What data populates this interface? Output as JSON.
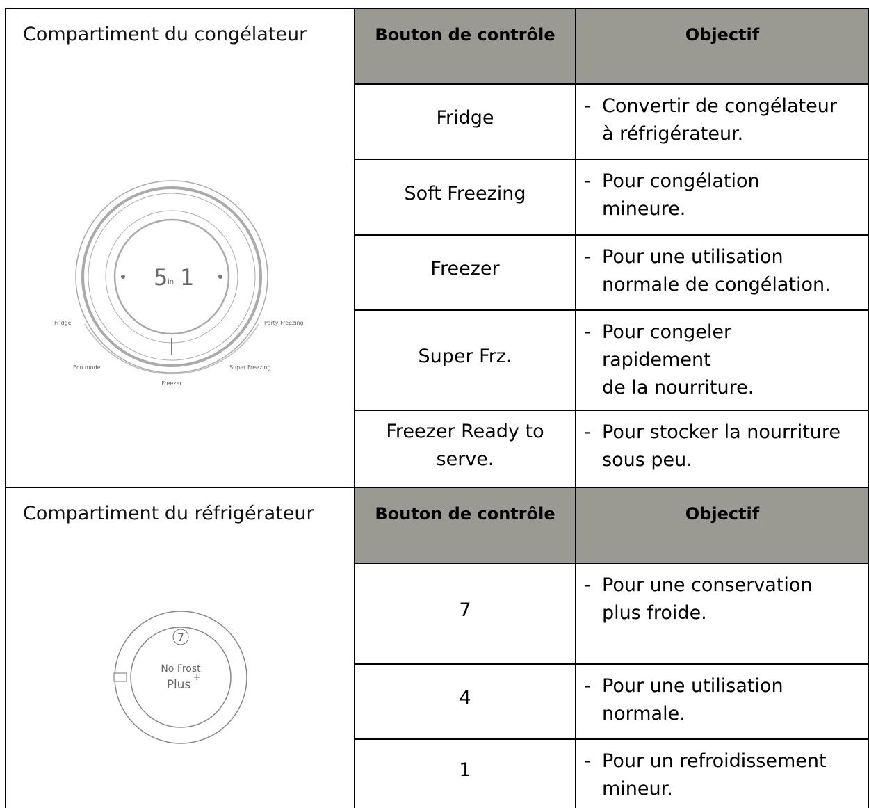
{
  "bullet": "-",
  "sections": [
    {
      "title": "Compartiment du congélateur",
      "headers": [
        "Bouton de contrôle",
        "Objectif"
      ],
      "rows": [
        {
          "control": "Fridge",
          "purpose": [
            "Convertir de congélateur",
            "à réfrigérateur."
          ]
        },
        {
          "control": "Soft Freezing",
          "purpose": [
            "Pour congélation",
            "mineure."
          ]
        },
        {
          "control": "Freezer",
          "purpose": [
            "Pour une utilisation",
            "normale de congélation."
          ]
        },
        {
          "control": "Super Frz.",
          "purpose": [
            "Pour congeler",
            "rapidement",
            "de la nourriture."
          ]
        },
        {
          "control": "Freezer Ready to serve.",
          "purpose": [
            "Pour stocker la nourriture",
            "sous peu."
          ]
        }
      ],
      "dial": {
        "center": [
          "5",
          "in",
          "1"
        ],
        "labels": [
          "Fridge",
          "Party Freezing",
          "Eco mode",
          "Super Freezing",
          "Freezer"
        ]
      }
    },
    {
      "title": "Compartiment du réfrigérateur",
      "headers": [
        "Bouton de contrôle",
        "Objectif"
      ],
      "rows": [
        {
          "control": "7",
          "purpose": [
            "Pour une conservation",
            "plus froide."
          ]
        },
        {
          "control": "4",
          "purpose": [
            "Pour une utilisation",
            "normale."
          ]
        },
        {
          "control": "1",
          "purpose": [
            "Pour un refroidissement",
            "mineur."
          ]
        }
      ],
      "dial": {
        "setting": "7",
        "brand": [
          "No Frost",
          "Plus",
          "+"
        ]
      }
    }
  ]
}
